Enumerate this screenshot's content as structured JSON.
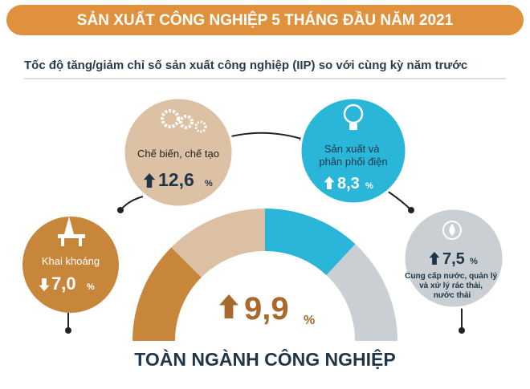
{
  "header": {
    "title": "SẢN XUẤT CÔNG NGHIỆP 5 THÁNG ĐẦU NĂM 2021"
  },
  "subtitle": "Tốc độ tăng/giảm chỉ số sản xuất công nghiệp (IIP) so với cùng kỳ năm trước",
  "unit": "%",
  "sectors": [
    {
      "name": "Khai khoáng",
      "value": "7,0",
      "direction": "down"
    },
    {
      "name": "Chế biến, chế tạo",
      "value": "12,6",
      "direction": "up"
    },
    {
      "name_lines": [
        "Sản xuất và",
        "phân phối điện"
      ],
      "value": "8,3",
      "direction": "up"
    },
    {
      "name_lines": [
        "Cung cấp nước, quản lý",
        "và xử lý rác thải,",
        "nước thải"
      ],
      "value": "7,5",
      "direction": "up"
    }
  ],
  "total": {
    "label": "TOÀN NGÀNH CÔNG NGHIỆP",
    "value": "9,9",
    "direction": "up"
  }
}
